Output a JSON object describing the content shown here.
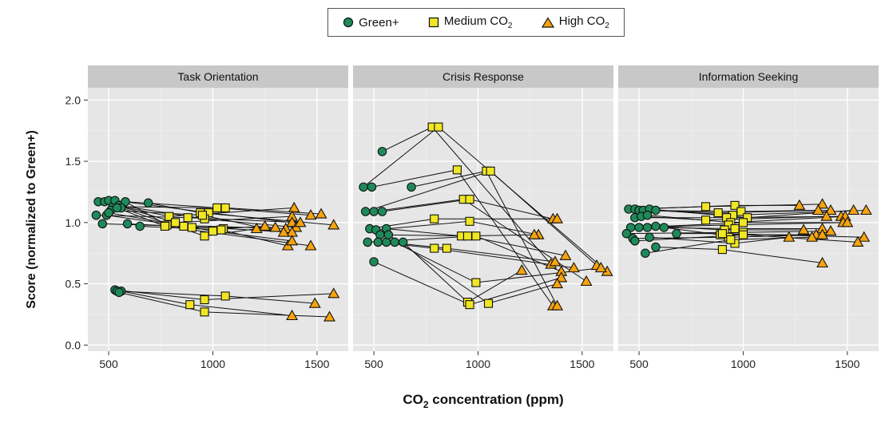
{
  "legend": [
    {
      "label": "Green+",
      "sub": "",
      "shape": "circle",
      "color": "#1e8a5a"
    },
    {
      "label": "Medium CO",
      "sub": "2",
      "shape": "square",
      "color": "#f0e625"
    },
    {
      "label": "High CO",
      "sub": "2",
      "shape": "triangle",
      "color": "#f5a30f"
    }
  ],
  "axes": {
    "ylabel": "Score (normalized to Green+)",
    "xlabel_main": "CO",
    "xlabel_sub": "2",
    "xlabel_rest": " concentration (ppm)",
    "yticks": [
      "0.0",
      "0.5",
      "1.0",
      "1.5",
      "2.0"
    ],
    "xticks": [
      "500",
      "1000",
      "1500"
    ]
  },
  "chart_data": {
    "type": "scatter",
    "xlim": [
      400,
      1650
    ],
    "ylim": [
      -0.05,
      2.1
    ],
    "grid": true,
    "legend_position": "top-center",
    "panels": [
      {
        "title": "Task Orientation",
        "subjects": [
          [
            [
              450,
              1.17
            ],
            [
              790,
              1.05
            ],
            [
              1390,
              1.12
            ]
          ],
          [
            [
              480,
              1.17
            ],
            [
              820,
              1.0
            ],
            [
              1380,
              1.05
            ]
          ],
          [
            [
              500,
              1.18
            ],
            [
              1020,
              1.12
            ],
            [
              1470,
              1.06
            ]
          ],
          [
            [
              520,
              1.13
            ],
            [
              1060,
              1.12
            ],
            [
              1520,
              1.07
            ]
          ],
          [
            [
              530,
              1.18
            ],
            [
              980,
              1.08
            ],
            [
              1380,
              1.0
            ]
          ],
          [
            [
              550,
              1.14
            ],
            [
              960,
              1.03
            ],
            [
              1400,
              0.96
            ]
          ],
          [
            [
              580,
              1.17
            ],
            [
              780,
              0.98
            ],
            [
              1350,
              0.95
            ]
          ],
          [
            [
              690,
              1.16
            ],
            [
              940,
              1.08
            ],
            [
              1580,
              0.98
            ]
          ],
          [
            [
              440,
              1.06
            ],
            [
              880,
              1.04
            ],
            [
              1420,
              1.0
            ]
          ],
          [
            [
              470,
              0.99
            ],
            [
              860,
              0.97
            ],
            [
              1380,
              0.92
            ]
          ],
          [
            [
              490,
              1.06
            ],
            [
              900,
              0.96
            ],
            [
              1300,
              0.96
            ]
          ],
          [
            [
              510,
              1.1
            ],
            [
              950,
              1.06
            ],
            [
              1340,
              0.92
            ]
          ],
          [
            [
              560,
              1.12
            ],
            [
              960,
              0.89
            ],
            [
              1210,
              0.95
            ]
          ],
          [
            [
              590,
              0.99
            ],
            [
              1050,
              0.95
            ],
            [
              1250,
              0.97
            ]
          ],
          [
            [
              650,
              0.97
            ],
            [
              1040,
              0.94
            ],
            [
              1360,
              0.81
            ]
          ],
          [
            [
              540,
              1.12
            ],
            [
              770,
              0.97
            ],
            [
              1470,
              0.81
            ]
          ],
          [
            [
              500,
              1.08
            ],
            [
              1000,
              0.93
            ],
            [
              1380,
              0.85
            ]
          ],
          [
            [
              530,
              0.45
            ],
            [
              960,
              0.37
            ],
            [
              1580,
              0.42
            ]
          ],
          [
            [
              540,
              0.44
            ],
            [
              1060,
              0.4
            ],
            [
              1490,
              0.34
            ]
          ],
          [
            [
              560,
              0.44
            ],
            [
              890,
              0.33
            ],
            [
              1380,
              0.24
            ]
          ],
          [
            [
              550,
              0.43
            ],
            [
              960,
              0.27
            ],
            [
              1560,
              0.23
            ]
          ]
        ]
      },
      {
        "title": "Crisis Response",
        "subjects": [
          [
            [
              540,
              1.58
            ],
            [
              780,
              1.78
            ],
            [
              1350,
              0.66
            ]
          ],
          [
            [
              450,
              1.29
            ],
            [
              810,
              1.78
            ],
            [
              1620,
              0.6
            ]
          ],
          [
            [
              490,
              1.29
            ],
            [
              900,
              1.43
            ],
            [
              1360,
              0.32
            ]
          ],
          [
            [
              680,
              1.29
            ],
            [
              1040,
              1.42
            ],
            [
              1380,
              0.32
            ]
          ],
          [
            [
              460,
              1.09
            ],
            [
              1060,
              1.42
            ],
            [
              1570,
              0.65
            ]
          ],
          [
            [
              500,
              1.09
            ],
            [
              930,
              1.19
            ],
            [
              1520,
              0.52
            ]
          ],
          [
            [
              540,
              1.09
            ],
            [
              960,
              1.19
            ],
            [
              1360,
              1.03
            ]
          ],
          [
            [
              480,
              0.95
            ],
            [
              790,
              1.03
            ],
            [
              1380,
              1.03
            ]
          ],
          [
            [
              510,
              0.94
            ],
            [
              960,
              1.01
            ],
            [
              1290,
              0.9
            ]
          ],
          [
            [
              560,
              0.95
            ],
            [
              920,
              0.89
            ],
            [
              1270,
              0.9
            ]
          ],
          [
            [
              530,
              0.9
            ],
            [
              950,
              0.89
            ],
            [
              1420,
              0.73
            ]
          ],
          [
            [
              470,
              0.84
            ],
            [
              990,
              0.89
            ],
            [
              1400,
              0.6
            ]
          ],
          [
            [
              520,
              0.84
            ],
            [
              790,
              0.79
            ],
            [
              1460,
              0.63
            ]
          ],
          [
            [
              560,
              0.84
            ],
            [
              850,
              0.79
            ],
            [
              1370,
              0.68
            ]
          ],
          [
            [
              600,
              0.84
            ],
            [
              990,
              0.51
            ],
            [
              1590,
              0.63
            ]
          ],
          [
            [
              640,
              0.84
            ],
            [
              950,
              0.35
            ],
            [
              1210,
              0.61
            ]
          ],
          [
            [
              500,
              0.68
            ],
            [
              960,
              0.33
            ],
            [
              1400,
              0.55
            ]
          ],
          [
            [
              570,
              0.9
            ],
            [
              1050,
              0.34
            ],
            [
              1380,
              0.5
            ]
          ]
        ]
      },
      {
        "title": "Information Seeking",
        "subjects": [
          [
            [
              450,
              1.11
            ],
            [
              820,
              1.13
            ],
            [
              1380,
              1.15
            ]
          ],
          [
            [
              480,
              1.11
            ],
            [
              960,
              1.14
            ],
            [
              1270,
              1.14
            ]
          ],
          [
            [
              500,
              1.1
            ],
            [
              990,
              1.09
            ],
            [
              1360,
              1.1
            ]
          ],
          [
            [
              520,
              1.1
            ],
            [
              880,
              1.08
            ],
            [
              1420,
              1.1
            ]
          ],
          [
            [
              550,
              1.11
            ],
            [
              1020,
              1.04
            ],
            [
              1530,
              1.1
            ]
          ],
          [
            [
              580,
              1.1
            ],
            [
              950,
              1.06
            ],
            [
              1590,
              1.1
            ]
          ],
          [
            [
              480,
              1.04
            ],
            [
              920,
              1.04
            ],
            [
              1470,
              1.05
            ]
          ],
          [
            [
              510,
              1.05
            ],
            [
              820,
              1.02
            ],
            [
              1400,
              1.05
            ]
          ],
          [
            [
              540,
              1.06
            ],
            [
              940,
              1.0
            ],
            [
              1490,
              1.05
            ]
          ],
          [
            [
              460,
              0.96
            ],
            [
              930,
              0.98
            ],
            [
              1480,
              1.0
            ]
          ],
          [
            [
              500,
              0.96
            ],
            [
              1000,
              1.0
            ],
            [
              1500,
              1.0
            ]
          ],
          [
            [
              540,
              0.96
            ],
            [
              960,
              0.95
            ],
            [
              1380,
              0.95
            ]
          ],
          [
            [
              580,
              0.97
            ],
            [
              910,
              0.94
            ],
            [
              1290,
              0.94
            ]
          ],
          [
            [
              620,
              0.96
            ],
            [
              890,
              0.9
            ],
            [
              1350,
              0.9
            ]
          ],
          [
            [
              440,
              0.91
            ],
            [
              1000,
              0.92
            ],
            [
              1420,
              0.93
            ]
          ],
          [
            [
              470,
              0.87
            ],
            [
              930,
              0.88
            ],
            [
              1380,
              0.9
            ]
          ],
          [
            [
              550,
              0.88
            ],
            [
              960,
              0.83
            ],
            [
              1220,
              0.88
            ]
          ],
          [
            [
              680,
              0.91
            ],
            [
              900,
              0.91
            ],
            [
              1580,
              0.88
            ]
          ],
          [
            [
              480,
              0.85
            ],
            [
              1000,
              0.9
            ],
            [
              1550,
              0.84
            ]
          ],
          [
            [
              580,
              0.8
            ],
            [
              900,
              0.78
            ],
            [
              1380,
              0.67
            ]
          ],
          [
            [
              530,
              0.75
            ],
            [
              940,
              0.86
            ],
            [
              1330,
              0.88
            ]
          ]
        ]
      }
    ]
  }
}
